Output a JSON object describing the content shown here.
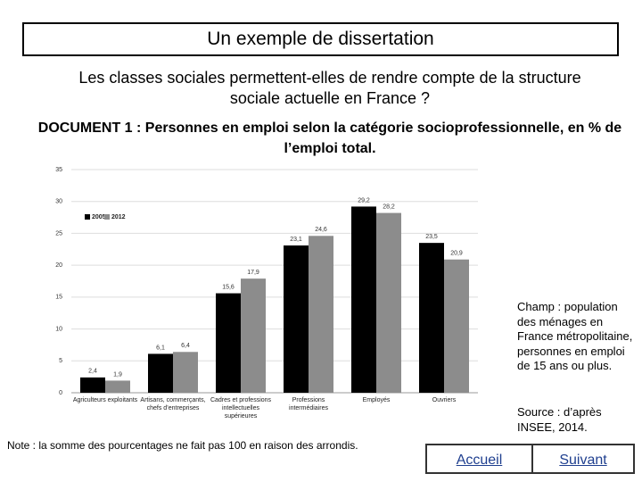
{
  "header": {
    "title": "Un exemple de dissertation"
  },
  "question": "Les classes sociales permettent-elles de rendre compte de la structure sociale actuelle en France ?",
  "document_title": "DOCUMENT 1 : Personnes en emploi selon la catégorie socioprofessionnelle, en % de l’emploi total.",
  "chart_data": {
    "type": "bar",
    "categories": [
      "Agriculteurs exploitants",
      "Artisans, commerçants, chefs d’entreprises",
      "Cadres et professions intellectuelles supérieures",
      "Professions intermédiaires",
      "Employés",
      "Ouvriers"
    ],
    "series": [
      {
        "name": "2005",
        "color": "#000000",
        "values": [
          2.4,
          6.1,
          15.6,
          23.1,
          29.2,
          23.5
        ],
        "value_labels": [
          "2,4",
          "6,1",
          "15,6",
          "23,1",
          "29,2",
          "23,5"
        ]
      },
      {
        "name": "2012",
        "color": "#8c8c8c",
        "values": [
          1.9,
          6.4,
          17.9,
          24.6,
          28.2,
          20.9
        ],
        "value_labels": [
          "1,9",
          "6,4",
          "17,9",
          "24,6",
          "28,2",
          "20,9"
        ]
      }
    ],
    "ylim": [
      0,
      35
    ],
    "yticks": [
      0,
      5,
      10,
      15,
      20,
      25,
      30,
      35
    ],
    "grid": true,
    "legend": "top-left"
  },
  "scope_note": "Champ : population des ménages en France métropolitaine, personnes en emploi de 15 ans ou plus.",
  "source": "Source : d’après INSEE, 2014.",
  "footnote": "Note : la somme des pourcentages ne fait pas 100 en raison des arrondis.",
  "buttons": [
    "Accueil",
    "Suivant"
  ]
}
